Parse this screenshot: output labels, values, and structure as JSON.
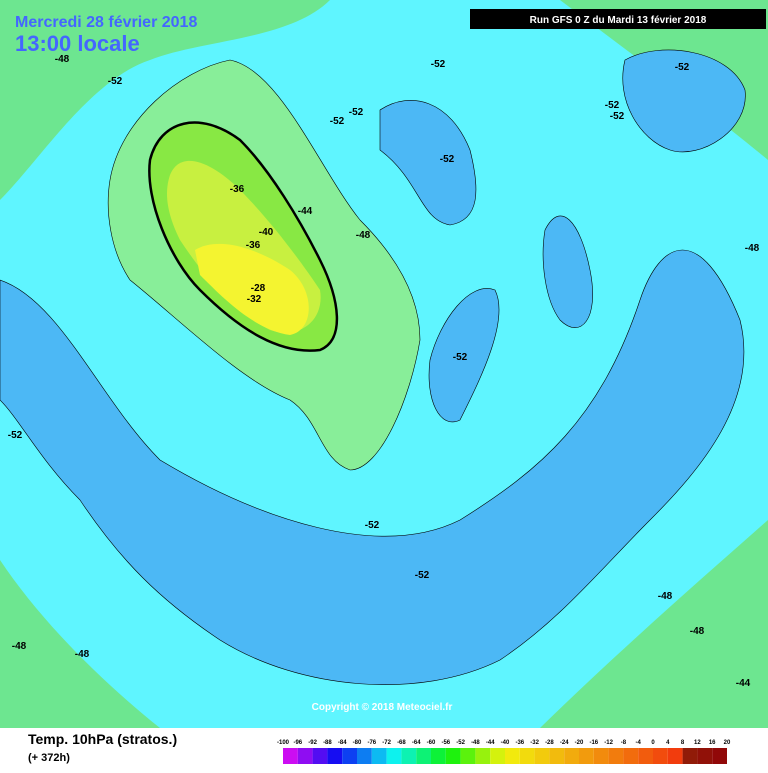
{
  "header": {
    "title": "Mercredi 28 février 2018",
    "time": "13:00 locale",
    "run": "Run GFS 0 Z du Mardi 13 février 2018"
  },
  "contour_labels": [
    -48,
    -52,
    -52,
    -52,
    -52,
    -52,
    -52,
    -52,
    -52,
    -36,
    -44,
    -40,
    -48,
    -48,
    -36,
    -28,
    -32,
    -52,
    -52,
    -52,
    -52,
    -48,
    -48,
    -48,
    -48,
    -44
  ],
  "copyright": "Copyright © 2018 Meteociel.fr",
  "footer": {
    "variable": "Temp. 10hPa (stratos.)",
    "lead": "(+ 372h)"
  },
  "legend": {
    "ticks": [
      -100,
      -96,
      -92,
      -88,
      -84,
      -80,
      -76,
      -72,
      -68,
      -64,
      -60,
      -56,
      -52,
      -48,
      -44,
      -40,
      -36,
      -32,
      -28,
      -24,
      -20,
      -16,
      -12,
      -8,
      -4,
      0,
      4,
      8,
      12,
      16,
      20
    ]
  }
}
